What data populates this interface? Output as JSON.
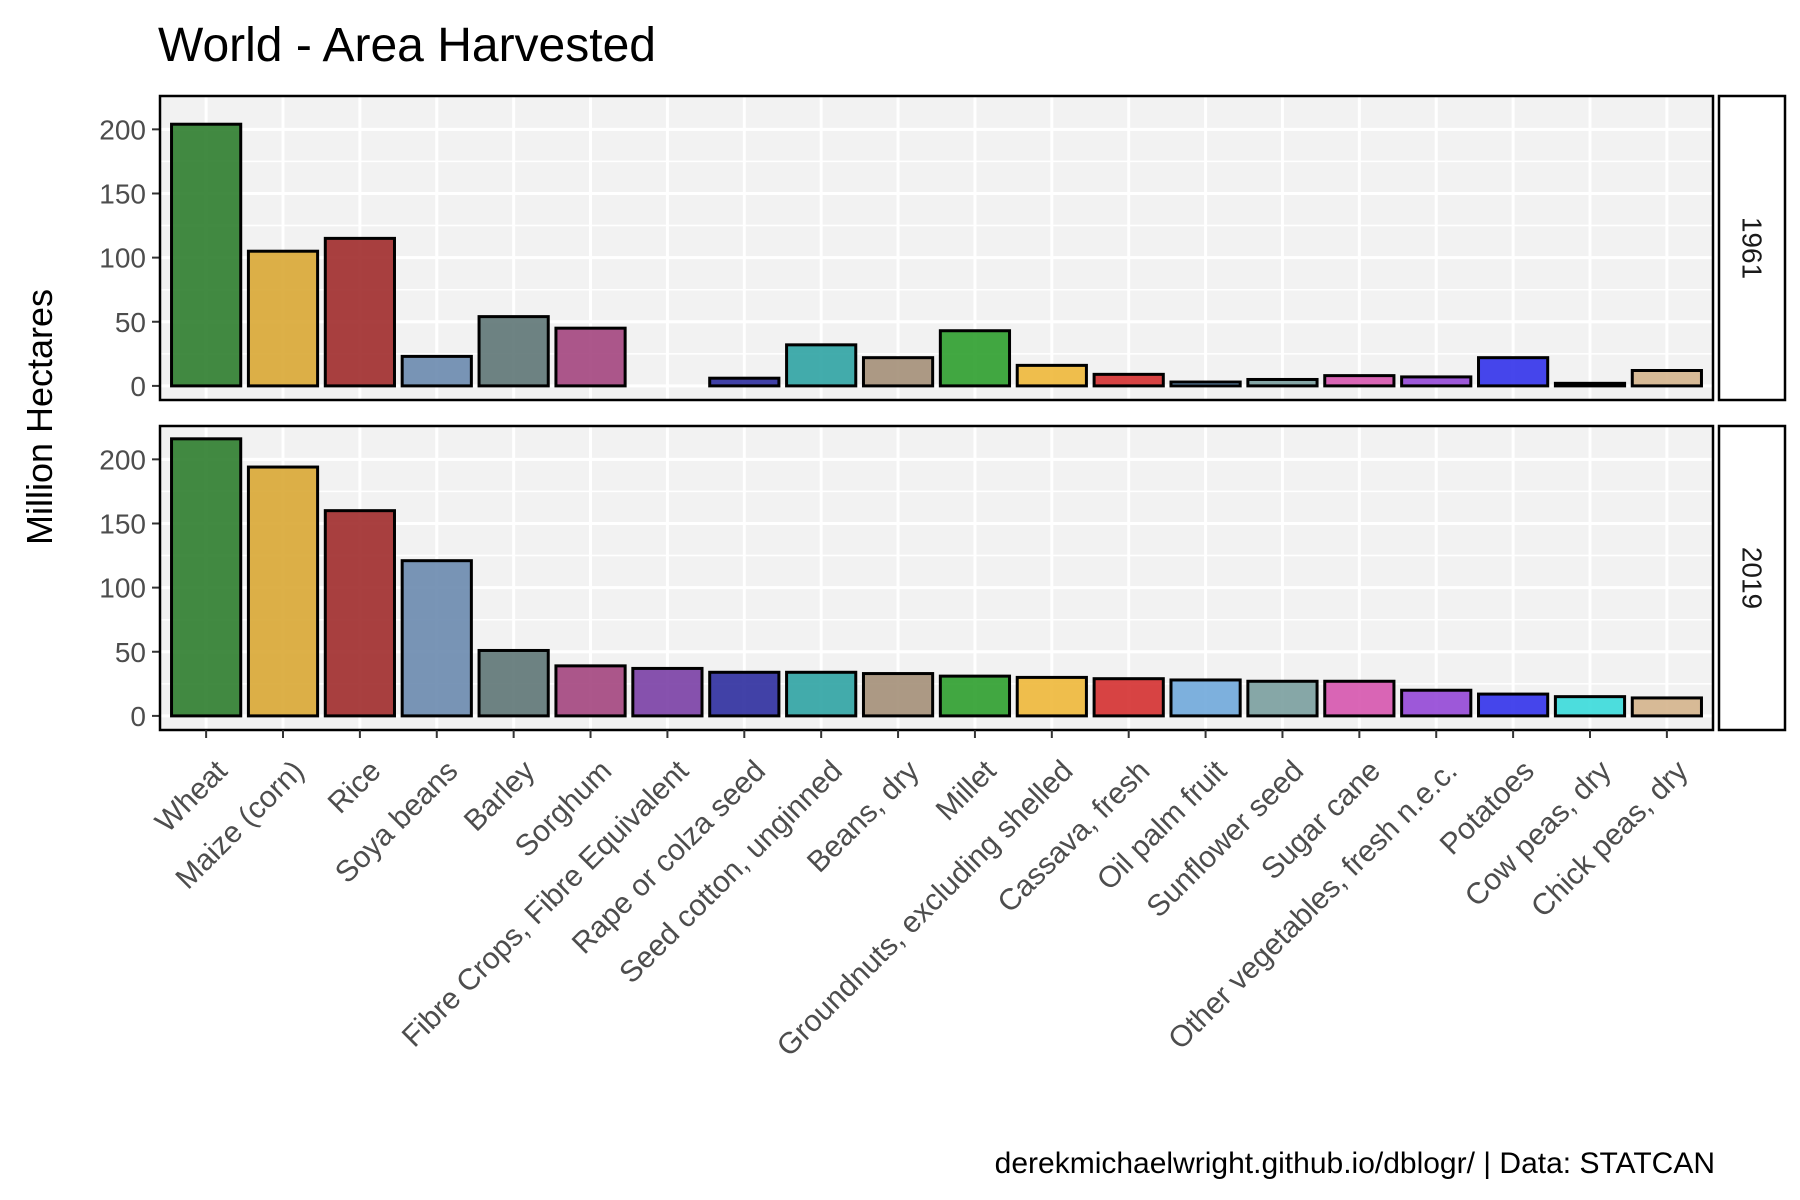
{
  "chart_data": {
    "type": "bar",
    "title": "World - Area Harvested",
    "ylabel": "Million Hectares",
    "caption": "derekmichaelwright.github.io/dblogr/ | Data: STATCAN",
    "ylim": [
      0,
      225
    ],
    "yticks": [
      0,
      50,
      100,
      150,
      200
    ],
    "grid": true,
    "legend": "none",
    "categories": [
      "Wheat",
      "Maize (corn)",
      "Rice",
      "Soya beans",
      "Barley",
      "Sorghum",
      "Fibre Crops, Fibre Equivalent",
      "Rape or colza seed",
      "Seed cotton, unginned",
      "Beans, dry",
      "Millet",
      "Groundnuts, excluding shelled",
      "Cassava, fresh",
      "Oil palm fruit",
      "Sunflower seed",
      "Sugar cane",
      "Other vegetables, fresh n.e.c.",
      "Potatoes",
      "Cow peas, dry",
      "Chick peas, dry"
    ],
    "colors": [
      "#2E7D2E",
      "#D9A734",
      "#A02B2B",
      "#6A8AAE",
      "#5E7575",
      "#A3457E",
      "#7A3FA5",
      "#2E2E9E",
      "#2FA3A3",
      "#A48F78",
      "#2E9E2E",
      "#EEB83A",
      "#D43030",
      "#70A8DA",
      "#7A9E9E",
      "#D655AE",
      "#9447D6",
      "#3232EA",
      "#3ADADA",
      "#D4B48C"
    ],
    "series": [
      {
        "name": "1961",
        "values": [
          204,
          105,
          115,
          23,
          54,
          45,
          null,
          6,
          32,
          22,
          43,
          16,
          9,
          3,
          5,
          8,
          7,
          22,
          2,
          12
        ]
      },
      {
        "name": "2019",
        "values": [
          216,
          194,
          160,
          121,
          51,
          39,
          37,
          34,
          34,
          33,
          31,
          30,
          29,
          28,
          27,
          27,
          20,
          17,
          15,
          14
        ]
      }
    ]
  }
}
